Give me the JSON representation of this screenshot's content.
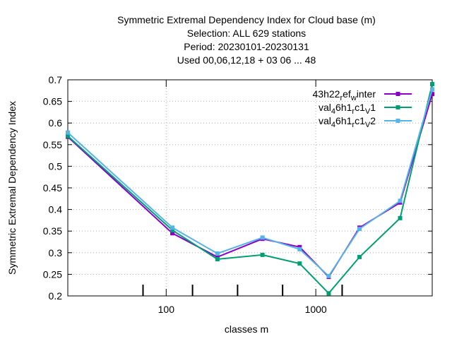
{
  "chart_data": {
    "type": "line",
    "title_lines": [
      "Symmetric Extremal Dependency Index  for Cloud base (m)",
      "Selection: ALL     629 stations",
      "Period: 20230101-20230131",
      "Used  00,06,12,18  + 03 06 ... 48"
    ],
    "xlabel": "classes m",
    "ylabel": "Symmetric Extremal Dependency Index",
    "x_scale": "log",
    "xlim": [
      22,
      6000
    ],
    "ylim": [
      0.2,
      0.7
    ],
    "x_ticks": [
      {
        "value": 100,
        "label": "100"
      },
      {
        "value": 1000,
        "label": "1000"
      }
    ],
    "x_minor_ticks": [
      70,
      150,
      300,
      600,
      1500
    ],
    "y_ticks": [
      {
        "value": 0.2,
        "label": "0.2"
      },
      {
        "value": 0.25,
        "label": "0.25"
      },
      {
        "value": 0.3,
        "label": "0.3"
      },
      {
        "value": 0.35,
        "label": "0.35"
      },
      {
        "value": 0.4,
        "label": "0.4"
      },
      {
        "value": 0.45,
        "label": "0.45"
      },
      {
        "value": 0.5,
        "label": "0.5"
      },
      {
        "value": 0.55,
        "label": "0.55"
      },
      {
        "value": 0.6,
        "label": "0.6"
      },
      {
        "value": 0.65,
        "label": "0.65"
      },
      {
        "value": 0.7,
        "label": "0.7"
      }
    ],
    "grid": true,
    "legend_position": "top-right",
    "x": [
      22,
      110,
      220,
      440,
      780,
      1220,
      1960,
      3660,
      6000
    ],
    "series": [
      {
        "legend": {
          "base": "43h22",
          "parts": [
            [
              "sub",
              "r"
            ],
            [
              "base",
              "ef"
            ],
            [
              "sub",
              "w"
            ],
            [
              "base",
              "inter"
            ]
          ]
        },
        "color": "#8b00c8",
        "values": [
          0.568,
          0.345,
          0.29,
          0.332,
          0.313,
          0.244,
          0.358,
          0.416,
          0.667
        ]
      },
      {
        "legend": {
          "base": "val",
          "parts": [
            [
              "sub",
              "4"
            ],
            [
              "base",
              "6h1"
            ],
            [
              "sub",
              "r"
            ],
            [
              "base",
              "c1"
            ],
            [
              "sub",
              "V"
            ],
            [
              "base",
              "1"
            ]
          ]
        },
        "color": "#009e73",
        "values": [
          0.57,
          0.352,
          0.285,
          0.295,
          0.275,
          0.206,
          0.29,
          0.38,
          0.69
        ]
      },
      {
        "legend": {
          "base": "val",
          "parts": [
            [
              "sub",
              "4"
            ],
            [
              "base",
              "6h1"
            ],
            [
              "sub",
              "r"
            ],
            [
              "base",
              "c1"
            ],
            [
              "sub",
              "V"
            ],
            [
              "base",
              "2"
            ]
          ]
        },
        "color": "#56b4e9",
        "values": [
          0.578,
          0.358,
          0.298,
          0.335,
          0.308,
          0.246,
          0.355,
          0.42,
          0.678
        ]
      }
    ]
  }
}
